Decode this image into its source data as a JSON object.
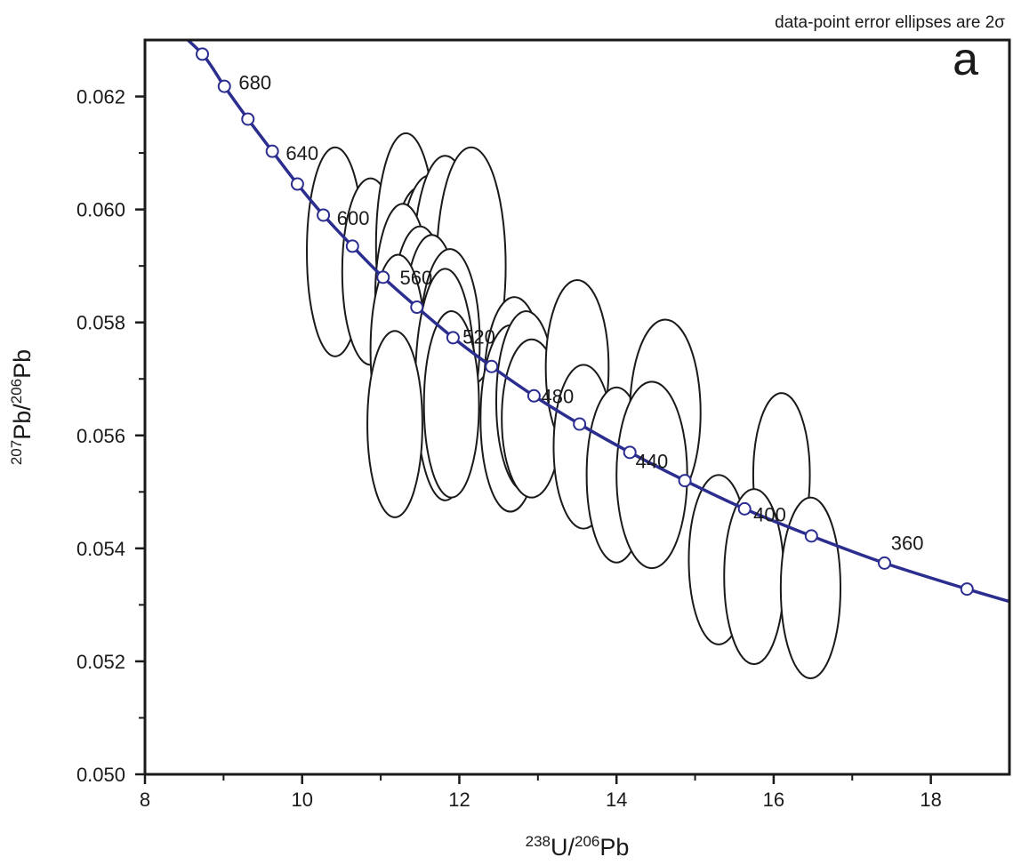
{
  "chart_data": {
    "type": "scatter",
    "subtype": "Tera-Wasserburg concordia with 2-sigma error ellipses",
    "note": "data-point error ellipses are 2σ",
    "panel_label": "a",
    "xlabel": {
      "sup1": "238",
      "base1": "U/",
      "sup2": "206",
      "base2": "Pb"
    },
    "ylabel": {
      "sup1": "207",
      "base1": "Pb/",
      "sup2": "206",
      "base2": "Pb"
    },
    "xlim": [
      8,
      19
    ],
    "ylim": [
      0.05,
      0.063
    ],
    "x_ticks": [
      8,
      10,
      12,
      14,
      16,
      18
    ],
    "x_tick_labels": [
      "8",
      "10",
      "12",
      "14",
      "16",
      "18"
    ],
    "y_ticks": [
      0.05,
      0.052,
      0.054,
      0.056,
      0.058,
      0.06,
      0.062
    ],
    "y_tick_labels": [
      "0.050",
      "0.052",
      "0.054",
      "0.056",
      "0.058",
      "0.060",
      "0.062"
    ],
    "concordia": {
      "color": "#2b2d8f",
      "curve_points": [
        [
          8.3,
          0.0633
        ],
        [
          8.73,
          0.06275
        ],
        [
          9.01,
          0.06218
        ],
        [
          9.31,
          0.0616
        ],
        [
          9.62,
          0.06103
        ],
        [
          9.94,
          0.06045
        ],
        [
          10.27,
          0.0599
        ],
        [
          10.64,
          0.05935
        ],
        [
          11.03,
          0.0588
        ],
        [
          11.46,
          0.05827
        ],
        [
          11.92,
          0.05773
        ],
        [
          12.41,
          0.05722
        ],
        [
          12.95,
          0.0567
        ],
        [
          13.53,
          0.0562
        ],
        [
          14.17,
          0.0557
        ],
        [
          14.87,
          0.0552
        ],
        [
          15.63,
          0.0547
        ],
        [
          16.48,
          0.05422
        ],
        [
          17.41,
          0.05374
        ],
        [
          18.46,
          0.05328
        ],
        [
          19.0,
          0.05306
        ]
      ],
      "markers": [
        [
          8.73,
          0.06275
        ],
        [
          9.01,
          0.06218
        ],
        [
          9.31,
          0.0616
        ],
        [
          9.62,
          0.06103
        ],
        [
          9.94,
          0.06045
        ],
        [
          10.27,
          0.0599
        ],
        [
          10.64,
          0.05935
        ],
        [
          11.03,
          0.0588
        ],
        [
          11.46,
          0.05827
        ],
        [
          11.92,
          0.05773
        ],
        [
          12.41,
          0.05722
        ],
        [
          12.95,
          0.0567
        ],
        [
          13.53,
          0.0562
        ],
        [
          14.17,
          0.0557
        ],
        [
          14.87,
          0.0552
        ],
        [
          15.63,
          0.0547
        ],
        [
          16.48,
          0.05422
        ],
        [
          17.41,
          0.05374
        ],
        [
          18.46,
          0.05328
        ]
      ],
      "age_labels": [
        {
          "text": "680",
          "x": 9.4,
          "y": 0.06225
        },
        {
          "text": "640",
          "x": 10.0,
          "y": 0.061
        },
        {
          "text": "600",
          "x": 10.65,
          "y": 0.05985
        },
        {
          "text": "560",
          "x": 11.45,
          "y": 0.0588
        },
        {
          "text": "520",
          "x": 12.25,
          "y": 0.05775
        },
        {
          "text": "480",
          "x": 13.25,
          "y": 0.0567
        },
        {
          "text": "440",
          "x": 14.45,
          "y": 0.05555
        },
        {
          "text": "400",
          "x": 15.95,
          "y": 0.0546
        },
        {
          "text": "360",
          "x": 17.7,
          "y": 0.0541
        }
      ]
    },
    "ellipses": [
      {
        "x": 10.42,
        "y": 0.05925,
        "dx": 0.36,
        "dy": 0.00185
      },
      {
        "x": 10.87,
        "y": 0.0589,
        "dx": 0.36,
        "dy": 0.00165
      },
      {
        "x": 11.32,
        "y": 0.05935,
        "dx": 0.38,
        "dy": 0.002
      },
      {
        "x": 11.5,
        "y": 0.0588,
        "dx": 0.36,
        "dy": 0.0016
      },
      {
        "x": 11.62,
        "y": 0.0589,
        "dx": 0.38,
        "dy": 0.0017
      },
      {
        "x": 11.82,
        "y": 0.05905,
        "dx": 0.4,
        "dy": 0.0019
      },
      {
        "x": 12.15,
        "y": 0.059,
        "dx": 0.44,
        "dy": 0.0021
      },
      {
        "x": 11.28,
        "y": 0.05845,
        "dx": 0.35,
        "dy": 0.00165
      },
      {
        "x": 11.5,
        "y": 0.05805,
        "dx": 0.36,
        "dy": 0.00165
      },
      {
        "x": 11.65,
        "y": 0.05785,
        "dx": 0.36,
        "dy": 0.0017
      },
      {
        "x": 11.88,
        "y": 0.05765,
        "dx": 0.38,
        "dy": 0.00165
      },
      {
        "x": 11.22,
        "y": 0.0575,
        "dx": 0.35,
        "dy": 0.0017
      },
      {
        "x": 11.82,
        "y": 0.0569,
        "dx": 0.38,
        "dy": 0.00205
      },
      {
        "x": 11.18,
        "y": 0.0562,
        "dx": 0.35,
        "dy": 0.00165
      },
      {
        "x": 11.9,
        "y": 0.05655,
        "dx": 0.35,
        "dy": 0.00165
      },
      {
        "x": 12.7,
        "y": 0.05695,
        "dx": 0.38,
        "dy": 0.0015
      },
      {
        "x": 12.65,
        "y": 0.0563,
        "dx": 0.38,
        "dy": 0.00165
      },
      {
        "x": 12.85,
        "y": 0.0566,
        "dx": 0.38,
        "dy": 0.0016
      },
      {
        "x": 12.92,
        "y": 0.0563,
        "dx": 0.38,
        "dy": 0.0014
      },
      {
        "x": 13.5,
        "y": 0.0572,
        "dx": 0.4,
        "dy": 0.00155
      },
      {
        "x": 13.58,
        "y": 0.0558,
        "dx": 0.38,
        "dy": 0.00145
      },
      {
        "x": 14.0,
        "y": 0.0553,
        "dx": 0.38,
        "dy": 0.00155
      },
      {
        "x": 14.62,
        "y": 0.0564,
        "dx": 0.45,
        "dy": 0.00165
      },
      {
        "x": 14.45,
        "y": 0.0553,
        "dx": 0.45,
        "dy": 0.00165
      },
      {
        "x": 16.1,
        "y": 0.0553,
        "dx": 0.36,
        "dy": 0.00145
      },
      {
        "x": 15.3,
        "y": 0.0538,
        "dx": 0.38,
        "dy": 0.0015
      },
      {
        "x": 15.75,
        "y": 0.0535,
        "dx": 0.38,
        "dy": 0.00155
      },
      {
        "x": 16.47,
        "y": 0.0533,
        "dx": 0.38,
        "dy": 0.0016
      }
    ]
  }
}
